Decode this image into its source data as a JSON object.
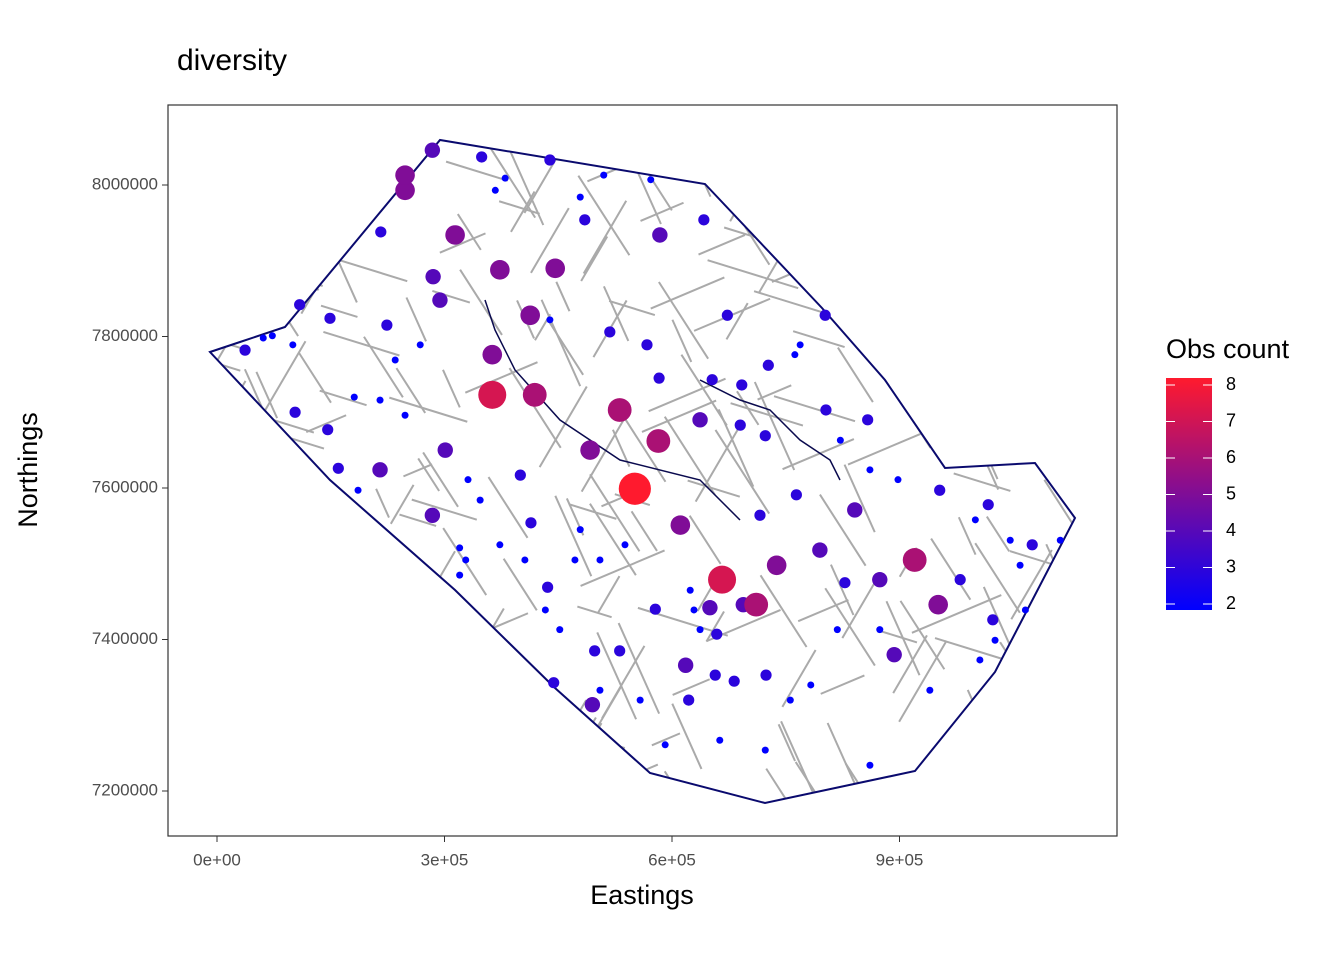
{
  "chart_data": {
    "type": "scatter",
    "title": "diversity",
    "x_label": "Eastings",
    "y_label": "Northings",
    "xlim": [
      -64600,
      1186800
    ],
    "ylim": [
      7140600,
      8105600
    ],
    "xticks": [
      {
        "value": 0,
        "label": "0e+00"
      },
      {
        "value": 300000,
        "label": "3e+05"
      },
      {
        "value": 600000,
        "label": "6e+05"
      },
      {
        "value": 900000,
        "label": "9e+05"
      }
    ],
    "yticks": [
      7200000,
      7400000,
      7600000,
      7800000,
      8000000
    ],
    "x": [
      551000,
      363000,
      582000,
      531000,
      666000,
      711000,
      413000,
      419000,
      248000,
      248000,
      314000,
      373000,
      920000,
      951000,
      738000,
      611000,
      446000,
      363000,
      492000,
      294000,
      284000,
      584000,
      642000,
      439000,
      109000,
      103000,
      146000,
      160000,
      215000,
      284000,
      301000,
      400000,
      414000,
      436000,
      495000,
      498000,
      531000,
      578000,
      618000,
      659000,
      657000,
      682000,
      724000,
      650000,
      694000,
      802000,
      803000,
      858000,
      841000,
      874000,
      893000,
      953000,
      1017000,
      1023000,
      1075000,
      673000,
      692000,
      727000,
      795000,
      828000,
      980000,
      444000,
      622000,
      224000,
      149000,
      37000,
      216000,
      349000,
      285000,
      485000,
      518000,
      567000,
      583000,
      653000,
      723000,
      764000,
      716000,
      690000,
      637000,
      73000,
      61000,
      100000,
      181000,
      248000,
      320000,
      328000,
      367000,
      380000,
      479000,
      510000,
      572000,
      769000,
      762000,
      822000,
      861000,
      1000000,
      1046000,
      1059000,
      1112000,
      433000,
      452000,
      505000,
      558000,
      591000,
      663000,
      723000,
      756000,
      783000,
      818000,
      874000,
      940000,
      1066000,
      1026000,
      1006000,
      861000,
      898000,
      439000,
      472000,
      479000,
      538000,
      505000,
      624000,
      629000,
      637000,
      320000,
      373000,
      235000,
      268000,
      215000,
      186000,
      331000,
      347000,
      406000
    ],
    "y": [
      7599000,
      7723000,
      7662000,
      7703000,
      7479000,
      7446000,
      7828000,
      7723000,
      8013000,
      7993000,
      7934000,
      7888000,
      7505000,
      7446000,
      7498000,
      7551000,
      7890000,
      7776000,
      7650000,
      7848000,
      8046000,
      7934000,
      7954000,
      8033000,
      7842000,
      7700000,
      7677000,
      7626000,
      7624000,
      7564000,
      7650000,
      7617000,
      7554000,
      7469000,
      7314000,
      7385000,
      7385000,
      7440000,
      7366000,
      7407000,
      7353000,
      7345000,
      7353000,
      7442000,
      7446000,
      7828000,
      7703000,
      7690000,
      7571000,
      7479000,
      7380000,
      7597000,
      7578000,
      7426000,
      7525000,
      7828000,
      7736000,
      7762000,
      7518000,
      7475000,
      7479000,
      7343000,
      7320000,
      7815000,
      7824000,
      7782000,
      7938000,
      8037000,
      7879000,
      7954000,
      7806000,
      7789000,
      7745000,
      7743000,
      7669000,
      7591000,
      7564000,
      7683000,
      7690000,
      7801000,
      7798000,
      7789000,
      7720000,
      7696000,
      7521000,
      7505000,
      7993000,
      8009000,
      7984000,
      8013000,
      8007000,
      7789000,
      7776000,
      7663000,
      7234000,
      7558000,
      7531000,
      7498000,
      7531000,
      7439000,
      7413000,
      7333000,
      7320000,
      7261000,
      7267000,
      7254000,
      7320000,
      7340000,
      7413000,
      7413000,
      7333000,
      7439000,
      7399000,
      7373000,
      7624000,
      7611000,
      7822000,
      7505000,
      7545000,
      7525000,
      7505000,
      7465000,
      7439000,
      7413000,
      7485000,
      7525000,
      7769000,
      7789000,
      7716000,
      7597000,
      7611000,
      7584000,
      7505000
    ],
    "values": [
      8,
      7,
      6,
      6,
      7,
      6,
      5,
      6,
      5,
      5,
      5,
      5,
      6,
      5,
      5,
      5,
      5,
      5,
      5,
      4,
      4,
      4,
      3,
      3,
      3,
      3,
      3,
      3,
      4,
      4,
      4,
      3,
      3,
      3,
      4,
      3,
      3,
      3,
      4,
      3,
      3,
      3,
      3,
      4,
      4,
      3,
      3,
      3,
      4,
      4,
      4,
      3,
      3,
      3,
      3,
      3,
      3,
      3,
      4,
      3,
      3,
      3,
      3,
      3,
      3,
      3,
      3,
      3,
      4,
      3,
      3,
      3,
      3,
      3,
      3,
      3,
      3,
      3,
      4,
      2,
      2,
      2,
      2,
      2,
      2,
      2,
      2,
      2,
      2,
      2,
      2,
      2,
      2,
      2,
      2,
      2,
      2,
      2,
      2,
      2,
      2,
      2,
      2,
      2,
      2,
      2,
      2,
      2,
      2,
      2,
      2,
      2,
      2,
      2,
      2,
      2,
      2,
      2,
      2,
      2,
      2,
      2,
      2,
      2,
      2,
      2,
      2,
      2,
      2,
      2,
      2,
      2,
      2
    ],
    "color_scale": {
      "title": "Obs count",
      "low": "#0000ff",
      "high": "#ff1a2e",
      "ticks": [
        2,
        3,
        4,
        5,
        6,
        7,
        8
      ]
    }
  }
}
